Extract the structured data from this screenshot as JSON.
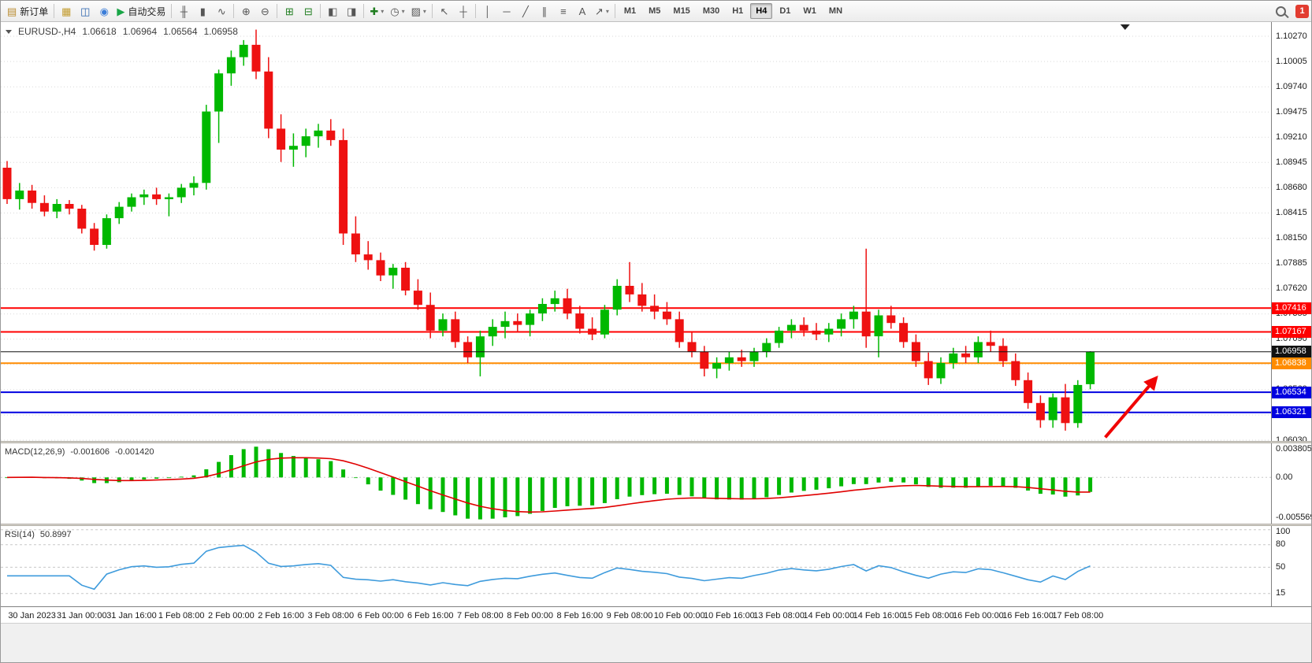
{
  "toolbar": {
    "badge": "1",
    "caret_glyph": "▾",
    "groups": [
      {
        "type": "icons",
        "items": [
          {
            "name": "new-order-button",
            "glyph": "▤",
            "glyph_color": "#b98b2f",
            "label": "新订单"
          }
        ]
      },
      {
        "type": "icons",
        "items": [
          {
            "name": "profiles-icon",
            "glyph": "▦",
            "glyph_color": "#c29b2d"
          },
          {
            "name": "charts-icon",
            "glyph": "◫",
            "glyph_color": "#2962ad"
          },
          {
            "name": "refresh-icon",
            "glyph": "◉",
            "glyph_color": "#3b7dd8"
          },
          {
            "name": "autotrading-button",
            "glyph": "▶",
            "glyph_color": "#18a546",
            "label": "自动交易"
          }
        ]
      },
      {
        "type": "icons",
        "items": [
          {
            "name": "bar-chart-icon",
            "glyph": "╫"
          },
          {
            "name": "candlestick-chart-icon",
            "glyph": "▮"
          },
          {
            "name": "line-chart-icon",
            "glyph": "∿"
          }
        ]
      },
      {
        "type": "icons",
        "items": [
          {
            "name": "zoom-in-icon",
            "glyph": "⊕"
          },
          {
            "name": "zoom-out-icon",
            "glyph": "⊖"
          }
        ]
      },
      {
        "type": "icons",
        "items": [
          {
            "name": "tile-windows-icon",
            "glyph": "⊞",
            "glyph_color": "#1f7d1f"
          },
          {
            "name": "cascade-windows-icon",
            "glyph": "⊟",
            "glyph_color": "#1f7d1f"
          }
        ]
      },
      {
        "type": "icons",
        "items": [
          {
            "name": "auto-scroll-icon",
            "glyph": "◧"
          },
          {
            "name": "chart-shift-icon",
            "glyph": "◨"
          }
        ]
      },
      {
        "type": "icons",
        "items": [
          {
            "name": "indicators-button",
            "glyph": "✚",
            "glyph_color": "#1f7d1f",
            "caret": true
          },
          {
            "name": "periods-button",
            "glyph": "◷",
            "caret": true
          },
          {
            "name": "templates-button",
            "glyph": "▨",
            "caret": true
          }
        ]
      },
      {
        "type": "icons",
        "items": [
          {
            "name": "cursor-icon",
            "glyph": "↖"
          },
          {
            "name": "crosshair-icon",
            "glyph": "┼"
          }
        ]
      },
      {
        "type": "icons",
        "items": [
          {
            "name": "vertical-line-icon",
            "glyph": "│"
          },
          {
            "name": "horizontal-line-icon",
            "glyph": "─"
          },
          {
            "name": "trendline-icon",
            "glyph": "╱"
          },
          {
            "name": "channel-icon",
            "glyph": "∥"
          },
          {
            "name": "fibonacci-icon",
            "glyph": "≡"
          },
          {
            "name": "text-icon",
            "glyph": "A"
          },
          {
            "name": "arrows-button",
            "glyph": "↗",
            "caret": true
          }
        ]
      },
      {
        "type": "timeframes",
        "items": [
          {
            "name": "tf-m1",
            "label": "M1"
          },
          {
            "name": "tf-m5",
            "label": "M5"
          },
          {
            "name": "tf-m15",
            "label": "M15"
          },
          {
            "name": "tf-m30",
            "label": "M30"
          },
          {
            "name": "tf-h1",
            "label": "H1"
          },
          {
            "name": "tf-h4",
            "label": "H4",
            "active": true
          },
          {
            "name": "tf-d1",
            "label": "D1"
          },
          {
            "name": "tf-w1",
            "label": "W1"
          },
          {
            "name": "tf-mn",
            "label": "MN"
          }
        ]
      }
    ]
  },
  "chart_data": {
    "type": "candlestick",
    "symbol": "EURUSD-",
    "period": "H4",
    "header": {
      "symbol_period": "EURUSD-,H4",
      "open": "1.06618",
      "high": "1.06964",
      "low": "1.06564",
      "close": "1.06958"
    },
    "price_axis": {
      "view_max": 1.10419,
      "view_min": 1.06022,
      "ticks": [
        "1.10270",
        "1.10005",
        "1.09740",
        "1.09475",
        "1.09210",
        "1.08945",
        "1.08680",
        "1.08415",
        "1.08150",
        "1.07885",
        "1.07620",
        "1.07355",
        "1.07090",
        "1.06825",
        "1.06560",
        "1.06295",
        "1.06030"
      ]
    },
    "colors": {
      "up": "#00b800",
      "down": "#ee1111",
      "grid": "#d9d9d9"
    },
    "candles": [
      [
        1.0889,
        1.0896,
        1.0851,
        1.0856
      ],
      [
        1.0856,
        1.0873,
        1.0845,
        1.0865
      ],
      [
        1.0865,
        1.0871,
        1.0846,
        1.0852
      ],
      [
        1.0852,
        1.086,
        1.0838,
        1.0843
      ],
      [
        1.0843,
        1.0856,
        1.0836,
        1.0851
      ],
      [
        1.0851,
        1.0855,
        1.084,
        1.0846
      ],
      [
        1.0846,
        1.085,
        1.082,
        1.0825
      ],
      [
        1.0825,
        1.0831,
        1.0802,
        1.0808
      ],
      [
        1.0808,
        1.084,
        1.0804,
        1.0836
      ],
      [
        1.0836,
        1.0853,
        1.083,
        1.0848
      ],
      [
        1.0848,
        1.0862,
        1.0843,
        1.0858
      ],
      [
        1.0858,
        1.0866,
        1.085,
        1.0861
      ],
      [
        1.0861,
        1.0868,
        1.085,
        1.0856
      ],
      [
        1.0856,
        1.0862,
        1.0838,
        1.0858
      ],
      [
        1.0858,
        1.0872,
        1.0852,
        1.0868
      ],
      [
        1.0868,
        1.088,
        1.086,
        1.0873
      ],
      [
        1.0873,
        1.0955,
        1.0866,
        1.0948
      ],
      [
        1.0948,
        1.0992,
        1.0915,
        1.0988
      ],
      [
        1.0988,
        1.1012,
        1.0975,
        1.1005
      ],
      [
        1.1005,
        1.1023,
        1.0996,
        1.1018
      ],
      [
        1.1018,
        1.1034,
        1.0982,
        1.099
      ],
      [
        1.099,
        1.1005,
        1.092,
        1.093
      ],
      [
        1.093,
        1.0945,
        1.0895,
        1.0908
      ],
      [
        1.0908,
        1.0925,
        1.089,
        1.0912
      ],
      [
        1.0912,
        1.093,
        1.09,
        1.0922
      ],
      [
        1.0922,
        1.0935,
        1.091,
        1.0928
      ],
      [
        1.0928,
        1.094,
        1.0912,
        1.0918
      ],
      [
        1.0918,
        1.093,
        1.0808,
        1.082
      ],
      [
        1.082,
        1.0838,
        1.079,
        1.0798
      ],
      [
        1.0798,
        1.0812,
        1.0782,
        1.0792
      ],
      [
        1.0792,
        1.08,
        1.077,
        1.0776
      ],
      [
        1.0776,
        1.0788,
        1.0762,
        1.0784
      ],
      [
        1.0784,
        1.079,
        1.0755,
        1.076
      ],
      [
        1.076,
        1.0772,
        1.074,
        1.0745
      ],
      [
        1.0745,
        1.0758,
        1.071,
        1.0718
      ],
      [
        1.0718,
        1.0736,
        1.0712,
        1.073
      ],
      [
        1.073,
        1.0738,
        1.07,
        1.0706
      ],
      [
        1.0706,
        1.0712,
        1.0684,
        1.069
      ],
      [
        1.069,
        1.0718,
        1.067,
        1.0712
      ],
      [
        1.0712,
        1.073,
        1.0702,
        1.0722
      ],
      [
        1.0722,
        1.0738,
        1.071,
        1.0728
      ],
      [
        1.0728,
        1.0736,
        1.0716,
        1.0724
      ],
      [
        1.0724,
        1.074,
        1.0712,
        1.0736
      ],
      [
        1.0736,
        1.0752,
        1.0728,
        1.0746
      ],
      [
        1.0746,
        1.076,
        1.0738,
        1.0752
      ],
      [
        1.0752,
        1.0762,
        1.073,
        1.0736
      ],
      [
        1.0736,
        1.0744,
        1.0715,
        1.072
      ],
      [
        1.072,
        1.0732,
        1.0708,
        1.0714
      ],
      [
        1.0714,
        1.0745,
        1.071,
        1.074
      ],
      [
        1.074,
        1.0772,
        1.0734,
        1.0765
      ],
      [
        1.0765,
        1.079,
        1.0748,
        1.0756
      ],
      [
        1.0756,
        1.0768,
        1.0738,
        1.0744
      ],
      [
        1.0744,
        1.0756,
        1.073,
        1.0738
      ],
      [
        1.0738,
        1.0748,
        1.0724,
        1.073
      ],
      [
        1.073,
        1.0738,
        1.07,
        1.0706
      ],
      [
        1.0706,
        1.0716,
        1.069,
        1.0696
      ],
      [
        1.0696,
        1.0702,
        1.067,
        1.0678
      ],
      [
        1.0678,
        1.069,
        1.0668,
        1.0684
      ],
      [
        1.0684,
        1.0696,
        1.0676,
        1.069
      ],
      [
        1.069,
        1.0698,
        1.068,
        1.0686
      ],
      [
        1.0686,
        1.07,
        1.068,
        1.0696
      ],
      [
        1.0696,
        1.071,
        1.069,
        1.0705
      ],
      [
        1.0705,
        1.0722,
        1.07,
        1.0718
      ],
      [
        1.0718,
        1.073,
        1.071,
        1.0724
      ],
      [
        1.0724,
        1.0732,
        1.0712,
        1.0718
      ],
      [
        1.0718,
        1.0726,
        1.0708,
        1.0714
      ],
      [
        1.0714,
        1.0726,
        1.0706,
        1.072
      ],
      [
        1.072,
        1.0736,
        1.0712,
        1.073
      ],
      [
        1.073,
        1.0744,
        1.072,
        1.0738
      ],
      [
        1.0738,
        1.0804,
        1.07,
        1.0712
      ],
      [
        1.0712,
        1.074,
        1.069,
        1.0734
      ],
      [
        1.0734,
        1.0744,
        1.072,
        1.0726
      ],
      [
        1.0726,
        1.0732,
        1.07,
        1.0706
      ],
      [
        1.0706,
        1.0714,
        1.068,
        1.0686
      ],
      [
        1.0686,
        1.0695,
        1.0661,
        1.0668
      ],
      [
        1.0668,
        1.069,
        1.0662,
        1.0684
      ],
      [
        1.0684,
        1.07,
        1.0678,
        1.0694
      ],
      [
        1.0694,
        1.0702,
        1.0684,
        1.069
      ],
      [
        1.069,
        1.0712,
        1.0684,
        1.0706
      ],
      [
        1.0706,
        1.0718,
        1.0696,
        1.0702
      ],
      [
        1.0702,
        1.071,
        1.068,
        1.0686
      ],
      [
        1.0686,
        1.0694,
        1.066,
        1.0666
      ],
      [
        1.0666,
        1.0674,
        1.0636,
        1.0642
      ],
      [
        1.0642,
        1.065,
        1.0616,
        1.0624
      ],
      [
        1.0624,
        1.0652,
        1.0616,
        1.0648
      ],
      [
        1.0648,
        1.0662,
        1.0613,
        1.0621
      ],
      [
        1.0621,
        1.0666,
        1.0616,
        1.0661
      ],
      [
        1.06618,
        1.06964,
        1.06564,
        1.06958
      ]
    ],
    "time_labels": [
      {
        "bar": 2,
        "label": "30 Jan 2023"
      },
      {
        "bar": 6,
        "label": "31 Jan 00:00"
      },
      {
        "bar": 10,
        "label": "31 Jan 16:00"
      },
      {
        "bar": 14,
        "label": "1 Feb 08:00"
      },
      {
        "bar": 18,
        "label": "2 Feb 00:00"
      },
      {
        "bar": 22,
        "label": "2 Feb 16:00"
      },
      {
        "bar": 26,
        "label": "3 Feb 08:00"
      },
      {
        "bar": 30,
        "label": "6 Feb 00:00"
      },
      {
        "bar": 34,
        "label": "6 Feb 16:00"
      },
      {
        "bar": 38,
        "label": "7 Feb 08:00"
      },
      {
        "bar": 42,
        "label": "8 Feb 00:00"
      },
      {
        "bar": 46,
        "label": "8 Feb 16:00"
      },
      {
        "bar": 50,
        "label": "9 Feb 08:00"
      },
      {
        "bar": 54,
        "label": "10 Feb 00:00"
      },
      {
        "bar": 58,
        "label": "10 Feb 16:00"
      },
      {
        "bar": 62,
        "label": "13 Feb 08:00"
      },
      {
        "bar": 66,
        "label": "14 Feb 00:00"
      },
      {
        "bar": 70,
        "label": "14 Feb 16:00"
      },
      {
        "bar": 74,
        "label": "15 Feb 08:00"
      },
      {
        "bar": 78,
        "label": "16 Feb 00:00"
      },
      {
        "bar": 82,
        "label": "16 Feb 16:00"
      },
      {
        "bar": 86,
        "label": "17 Feb 08:00"
      }
    ],
    "levels": [
      {
        "name": "resistance-line-1",
        "price": 1.07416,
        "label": "1.07416",
        "color": "#ff0000",
        "width": 2
      },
      {
        "name": "resistance-line-2",
        "price": 1.07167,
        "label": "1.07167",
        "color": "#ff0000",
        "width": 2
      },
      {
        "name": "pivot-line",
        "price": 1.06838,
        "label": "1.06838",
        "color": "#ff8c00",
        "width": 2
      },
      {
        "name": "support-line-1",
        "price": 1.06534,
        "label": "1.06534",
        "color": "#0000e0",
        "width": 2
      },
      {
        "name": "support-line-2",
        "price": 1.06321,
        "label": "1.06321",
        "color": "#0000e0",
        "width": 2
      }
    ],
    "bid_line": {
      "price": 1.06958,
      "label": "1.06958",
      "color": "#111111",
      "width": 1
    },
    "shift_marker": {
      "bar": 89.8
    },
    "annotations": [
      {
        "name": "trend-arrow",
        "shape": "arrow",
        "color": "#f00505",
        "from_bar": 88.2,
        "from_price": 1.0606,
        "to_bar": 92.2,
        "to_price": 1.0667,
        "stroke_width": 4
      }
    ],
    "indicators": {
      "macd": {
        "label": "MACD(12,26,9)",
        "value": "-0.001606",
        "signal_value": "-0.001420",
        "fast": 12,
        "slow": 26,
        "signal": 9,
        "scale_labels": {
          "top": "0.003805",
          "zero": "0.00",
          "bottom": "-0.005569"
        },
        "hist_color": "#00b800",
        "signal_color": "#e00000"
      },
      "rsi": {
        "label": "RSI(14)",
        "value": "50.8997",
        "period": 14,
        "scale_labels": [
          "100",
          "80",
          "50",
          "15"
        ],
        "level_lines": [
          100,
          80,
          50,
          15
        ],
        "line_color": "#3e9bdc"
      }
    }
  }
}
